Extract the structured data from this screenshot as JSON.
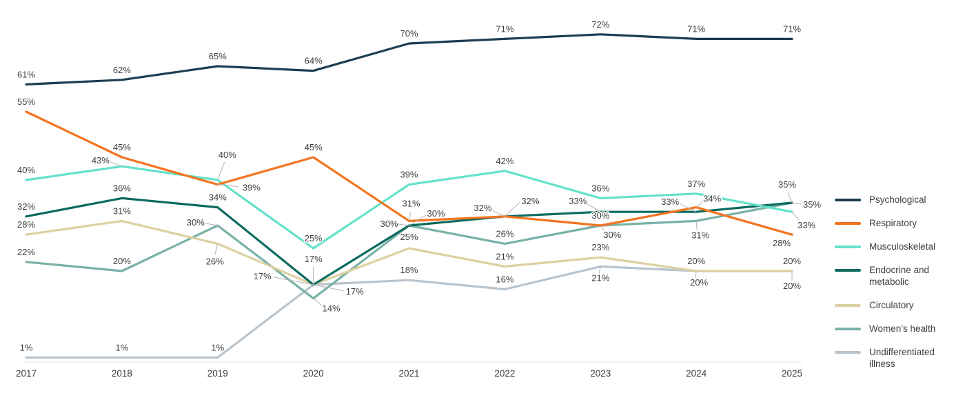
{
  "chart_data": {
    "type": "line",
    "title": "",
    "x": [
      "2017",
      "2018",
      "2019",
      "2020",
      "2021",
      "2022",
      "2023",
      "2024",
      "2025"
    ],
    "unit": "%",
    "ylim": [
      0,
      75
    ],
    "grid": false,
    "legend_position": "right",
    "axis_color": "#e0e0e0",
    "label_color": "#3d3d3d",
    "leader_color": "#b3b3b3",
    "series": [
      {
        "name": "Psychological",
        "color": "#1d3d52",
        "values": [
          61,
          62,
          65,
          64,
          70,
          71,
          72,
          71,
          71
        ]
      },
      {
        "name": "Respiratory",
        "color": "#f4731f",
        "values": [
          55,
          45,
          39,
          45,
          31,
          32,
          30,
          34,
          28
        ]
      },
      {
        "name": "Musculoskeletal",
        "color": "#63e1cb",
        "values": [
          40,
          43,
          40,
          25,
          39,
          42,
          36,
          37,
          33
        ]
      },
      {
        "name": "Endocrine and metabolic",
        "color": "#0c6b60",
        "values": [
          32,
          36,
          34,
          17,
          30,
          32,
          33,
          33,
          35
        ]
      },
      {
        "name": "Circulatory",
        "color": "#dcd1a0",
        "values": [
          28,
          31,
          26,
          17,
          25,
          21,
          23,
          20,
          20
        ]
      },
      {
        "name": "Women’s health",
        "color": "#77b1a7",
        "values": [
          22,
          20,
          30,
          14,
          30,
          26,
          30,
          31,
          35
        ]
      },
      {
        "name": "Undifferentiated illness",
        "color": "#b9c4cd",
        "values": [
          1,
          1,
          1,
          17,
          18,
          16,
          21,
          20,
          20
        ]
      }
    ]
  }
}
